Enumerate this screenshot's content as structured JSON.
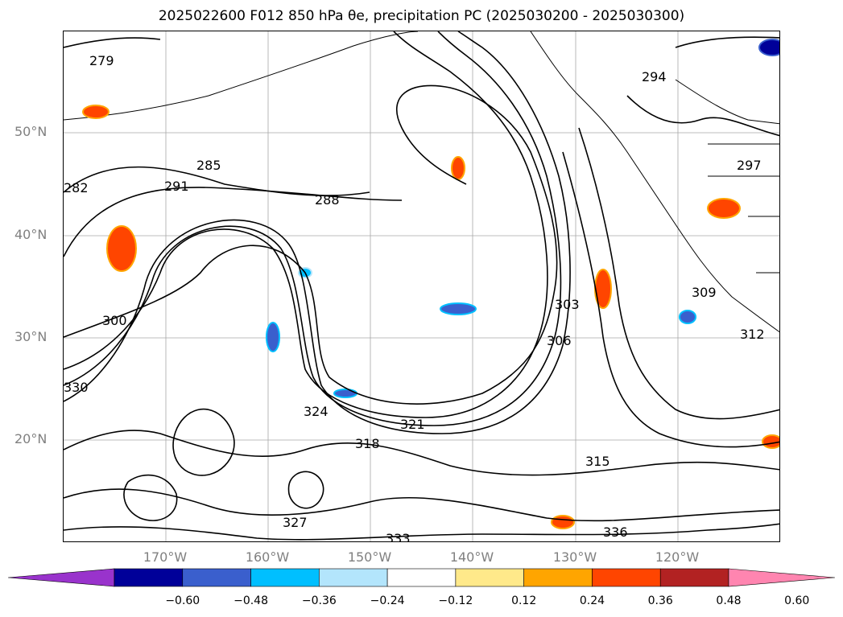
{
  "title": "2025022600 F012 850 hPa θe, precipitation PC (2025030200 - 2025030300)",
  "map": {
    "region": "North Pacific",
    "lat_labels": [
      "50°N",
      "40°N",
      "30°N",
      "20°N"
    ],
    "lon_labels": [
      "170°W",
      "160°W",
      "150°W",
      "140°W",
      "130°W",
      "120°W"
    ],
    "contour_labels": [
      "279",
      "282",
      "285",
      "288",
      "291",
      "294",
      "297",
      "300",
      "303",
      "306",
      "309",
      "312",
      "315",
      "318",
      "321",
      "324",
      "327",
      "330",
      "333",
      "336"
    ],
    "colors": {
      "land_outline": "#000000",
      "grid": "#808080",
      "contour": "#000000"
    }
  },
  "colorbar": {
    "colors": [
      "#9933cc",
      "#000099",
      "#3a5fcd",
      "#00bfff",
      "#b3e5fc",
      "#ffffff",
      "#ffe98a",
      "#ffa500",
      "#ff4500",
      "#b22222",
      "#ff85b0"
    ],
    "tick_labels": [
      "−0.60",
      "−0.48",
      "−0.36",
      "−0.24",
      "−0.12",
      "0.12",
      "0.24",
      "0.36",
      "0.48",
      "0.60"
    ]
  }
}
